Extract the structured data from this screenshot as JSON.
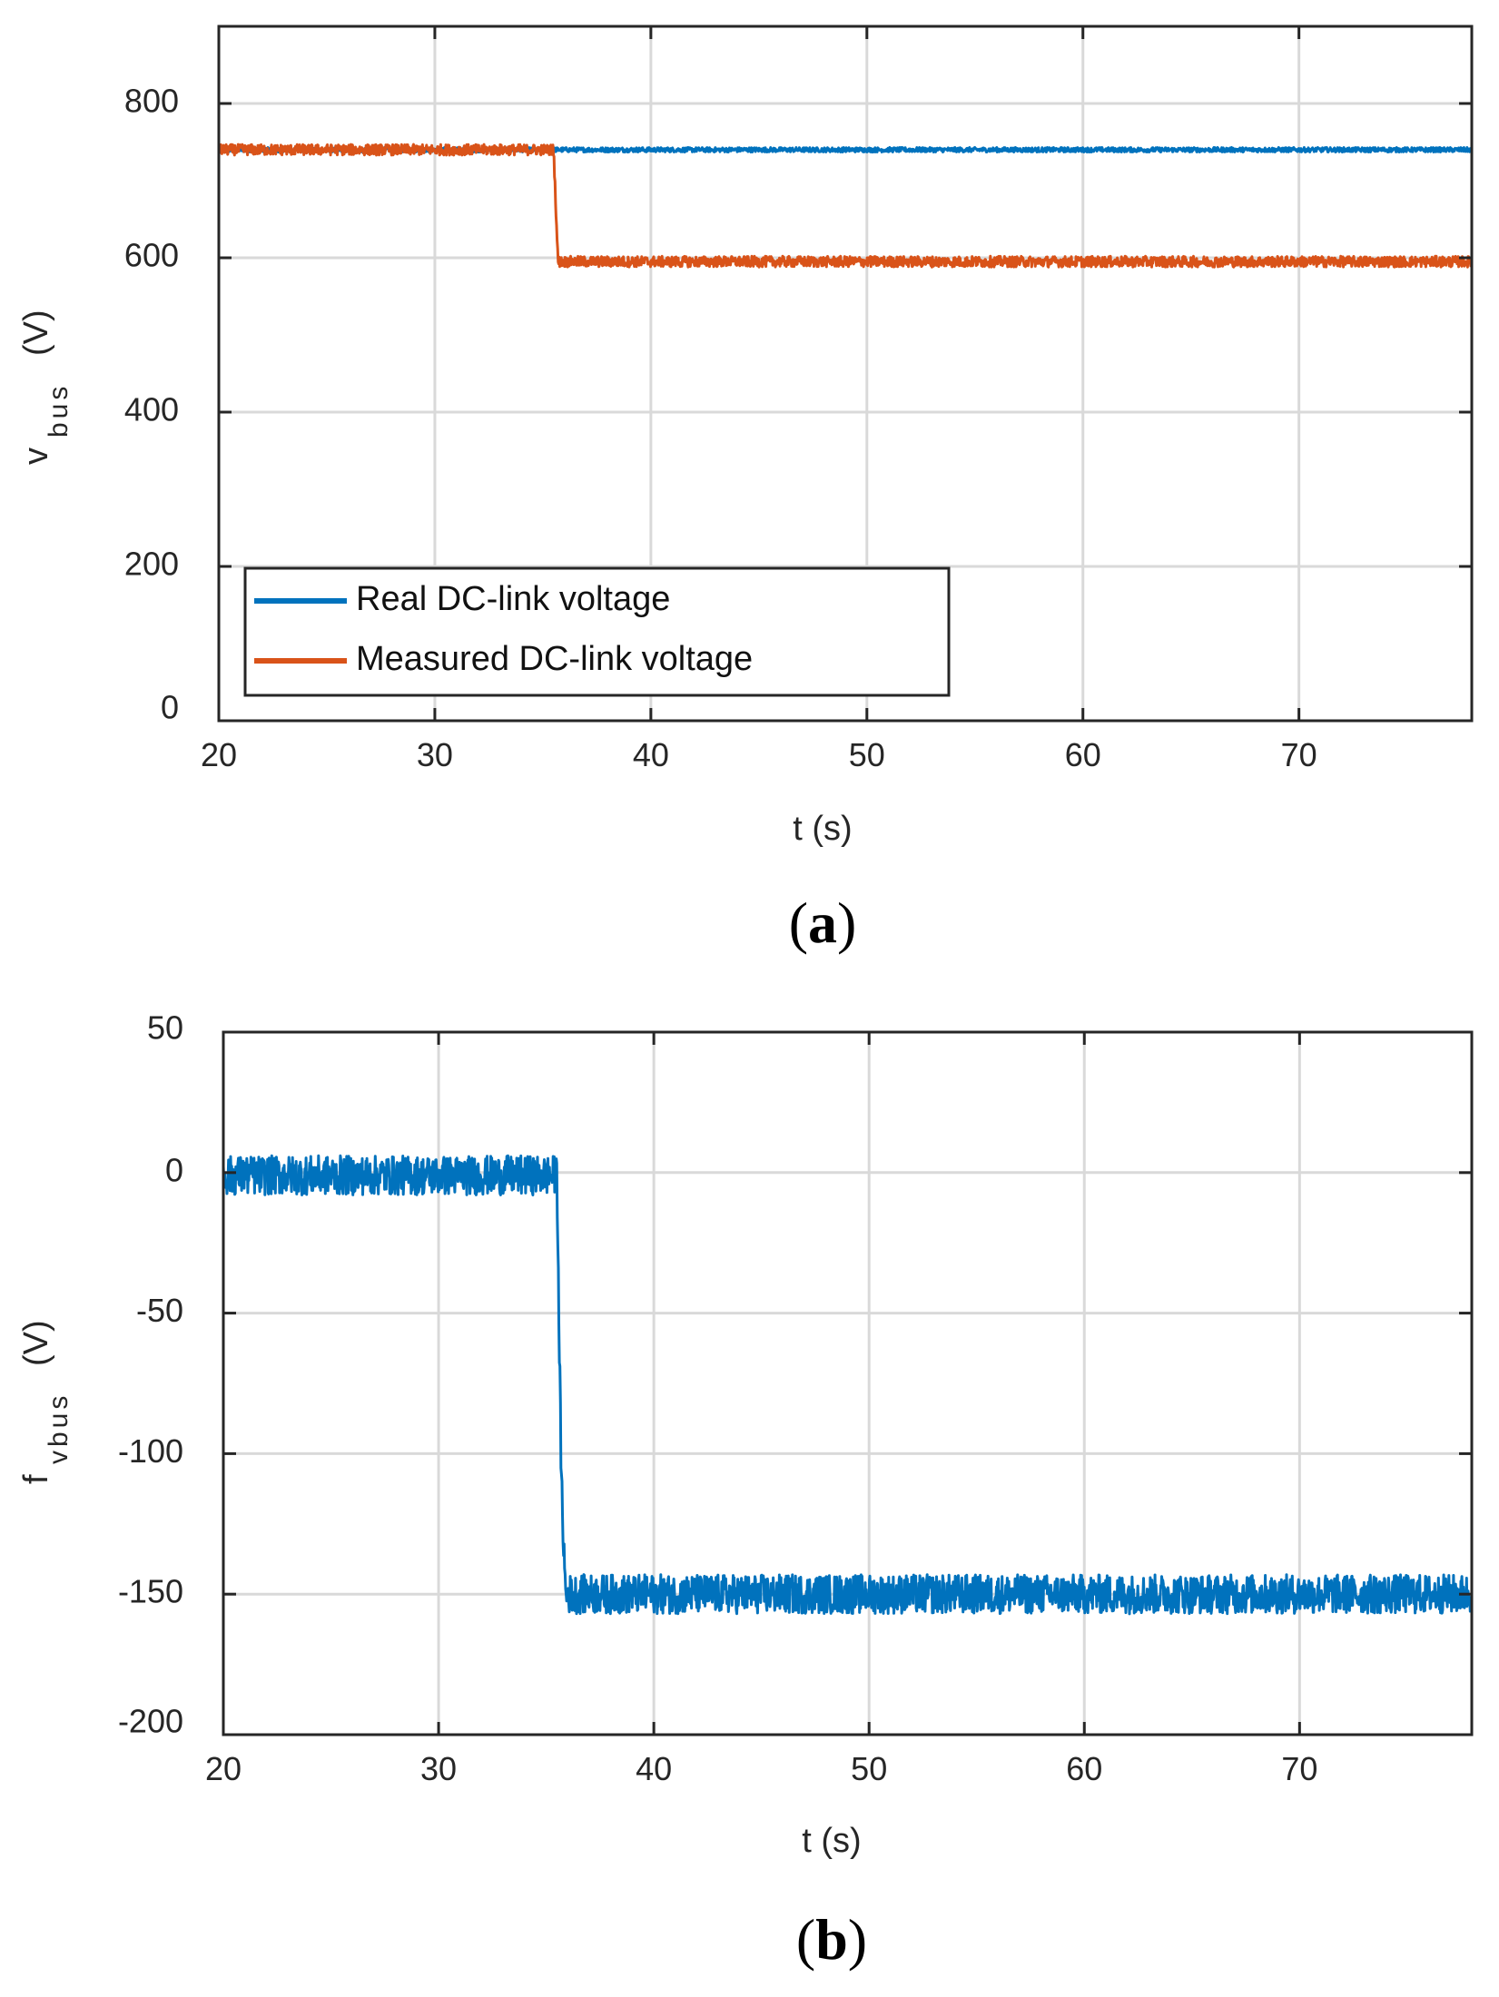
{
  "chart_data": [
    {
      "type": "line",
      "caption": {
        "open": "(",
        "letter": "a",
        "close": ")"
      },
      "xlabel": "t (s)",
      "ylabel": {
        "main": "v",
        "sub": "bus",
        "unit": "(V)"
      },
      "xlim": [
        20,
        78
      ],
      "ylim": [
        0,
        900
      ],
      "xticks": [
        20,
        30,
        40,
        50,
        60,
        70
      ],
      "yticks": [
        0,
        200,
        400,
        600,
        800
      ],
      "grid": true,
      "legend": {
        "placement": "bottom-left"
      },
      "series": [
        {
          "name": "Real DC-link voltage",
          "color": "#0072BD",
          "x": [
            20,
            35.6,
            35.6,
            78
          ],
          "y": [
            740,
            740,
            740,
            740
          ],
          "noise": 3
        },
        {
          "name": "Measured DC-link voltage",
          "color": "#D95319",
          "x": [
            20,
            35.5,
            35.7,
            78
          ],
          "y": [
            740,
            740,
            595,
            595
          ],
          "noise": 7
        }
      ]
    },
    {
      "type": "line",
      "caption": {
        "open": "(",
        "letter": "b",
        "close": ")"
      },
      "xlabel": "t (s)",
      "ylabel": {
        "main": "f",
        "sub": "vbus",
        "unit": "(V)"
      },
      "xlim": [
        20,
        78
      ],
      "ylim": [
        -200,
        50
      ],
      "xticks": [
        20,
        30,
        40,
        50,
        60,
        70
      ],
      "yticks": [
        -200,
        -150,
        -100,
        -50,
        0,
        50
      ],
      "grid": true,
      "series": [
        {
          "name": "",
          "color": "#0072BD",
          "x": [
            20,
            35.5,
            35.7,
            35.9,
            78
          ],
          "y": [
            -1,
            -1,
            -110,
            -150,
            -150
          ],
          "noise": 7
        }
      ]
    }
  ]
}
